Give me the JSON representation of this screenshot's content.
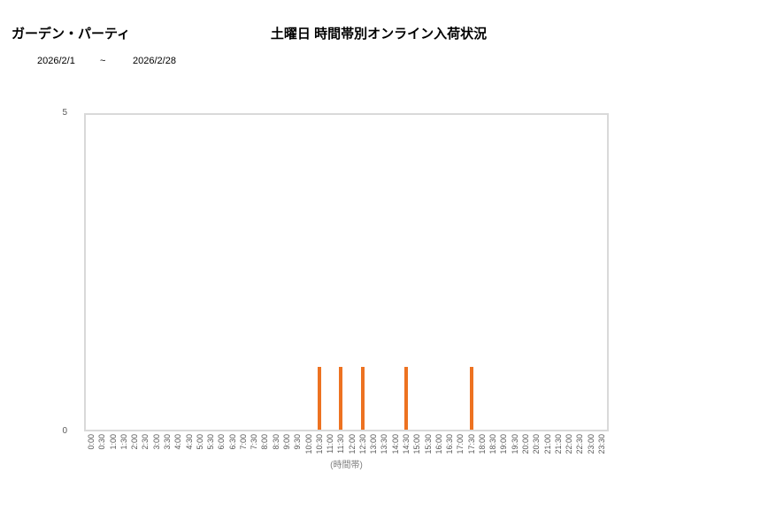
{
  "header": {
    "product_name": "ガーデン・パーティ",
    "title": "土曜日 時間帯別オンライン入荷状況",
    "date_from": "2026/2/1",
    "date_separator": "~",
    "date_to": "2026/2/28"
  },
  "chart_data": {
    "type": "bar",
    "title": "土曜日 時間帯別オンライン入荷状況",
    "xlabel": "(時間帯)",
    "ylabel": "",
    "ylim": [
      0,
      5
    ],
    "y_ticks": [
      0,
      5
    ],
    "grid": false,
    "legend": "none",
    "bar_color": "#ED7221",
    "axis_text_color": "#595959",
    "plot_border_color": "#D9D9D9",
    "categories": [
      "0:00",
      "0:30",
      "1:00",
      "1:30",
      "2:00",
      "2:30",
      "3:00",
      "3:30",
      "4:00",
      "4:30",
      "5:00",
      "5:30",
      "6:00",
      "6:30",
      "7:00",
      "7:30",
      "8:00",
      "8:30",
      "9:00",
      "9:30",
      "10:00",
      "10:30",
      "11:00",
      "11:30",
      "12:00",
      "12:30",
      "13:00",
      "13:30",
      "14:00",
      "14:30",
      "15:00",
      "15:30",
      "16:00",
      "16:30",
      "17:00",
      "17:30",
      "18:00",
      "18:30",
      "19:00",
      "19:30",
      "20:00",
      "20:30",
      "21:00",
      "21:30",
      "22:00",
      "22:30",
      "23:00",
      "23:30"
    ],
    "values": [
      0,
      0,
      0,
      0,
      0,
      0,
      0,
      0,
      0,
      0,
      0,
      0,
      0,
      0,
      0,
      0,
      0,
      0,
      0,
      0,
      0,
      1,
      0,
      1,
      0,
      1,
      0,
      0,
      0,
      1,
      0,
      0,
      0,
      0,
      0,
      1,
      0,
      0,
      0,
      0,
      0,
      0,
      0,
      0,
      0,
      0,
      0,
      0
    ]
  }
}
